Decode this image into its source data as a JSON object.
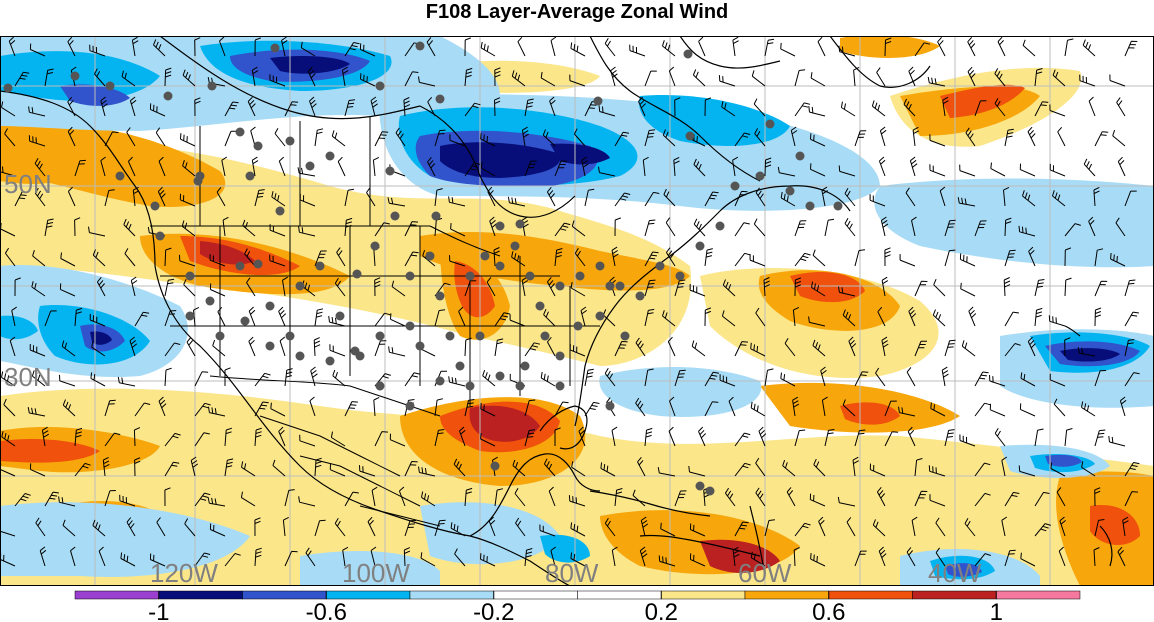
{
  "title": "F108 Layer-Average Zonal Wind",
  "map": {
    "lat_labels": [
      "50N",
      "30N"
    ],
    "lon_labels": [
      "120W",
      "100W",
      "80W",
      "60W",
      "40W"
    ],
    "label_color": "#808080",
    "grid_color": "#bdbdbd",
    "station_color": "#555555",
    "coast_color": "#000000"
  },
  "colorbar": {
    "colors": [
      "#9a3fd0",
      "#070e7a",
      "#3153cb",
      "#04b4f1",
      "#a8dcf6",
      "#ffffff",
      "#ffffff",
      "#fbe68a",
      "#f7a70b",
      "#f0510c",
      "#ba2120",
      "#f5799f"
    ],
    "tick_labels": [
      "-1",
      "-0.6",
      "-0.2",
      "0.2",
      "0.6",
      "1"
    ],
    "tick_index": [
      2,
      4,
      6,
      8,
      10,
      12
    ]
  }
}
